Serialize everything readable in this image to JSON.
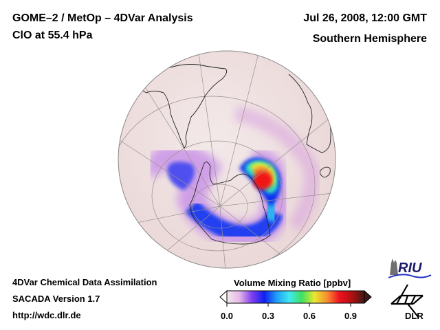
{
  "header": {
    "title_line1": "GOME–2 / MetOp – 4DVar Analysis",
    "title_line2": "ClO at 55.4 hPa",
    "date": "Jul 26, 2008, 12:00 GMT",
    "hemisphere": "Southern Hemisphere"
  },
  "footer": {
    "line1": "4DVar Chemical Data Assimilation",
    "line2": "SACADA Version 1.7",
    "line3": "http://wdc.dlr.de"
  },
  "colorbar": {
    "title": "Volume Mixing Ratio [ppbv]",
    "ticks": [
      "0.0",
      "0.3",
      "0.6",
      "0.9"
    ],
    "tick_values": [
      0.0,
      0.3,
      0.6,
      0.9
    ],
    "range": [
      0.0,
      1.0
    ],
    "colors": [
      "#f4e8ec",
      "#e8b8e8",
      "#8040f0",
      "#1020f0",
      "#20a0f8",
      "#40e8f0",
      "#40e060",
      "#e8e830",
      "#f89030",
      "#f01020",
      "#b01010",
      "#401818"
    ]
  },
  "map": {
    "projection": "orthographic",
    "hemisphere": "south",
    "variable": "ClO",
    "pressure_level": "55.4 hPa",
    "background_color": "#f2e2e2"
  },
  "logos": {
    "riu": "RIU",
    "dlr": "DLR"
  }
}
